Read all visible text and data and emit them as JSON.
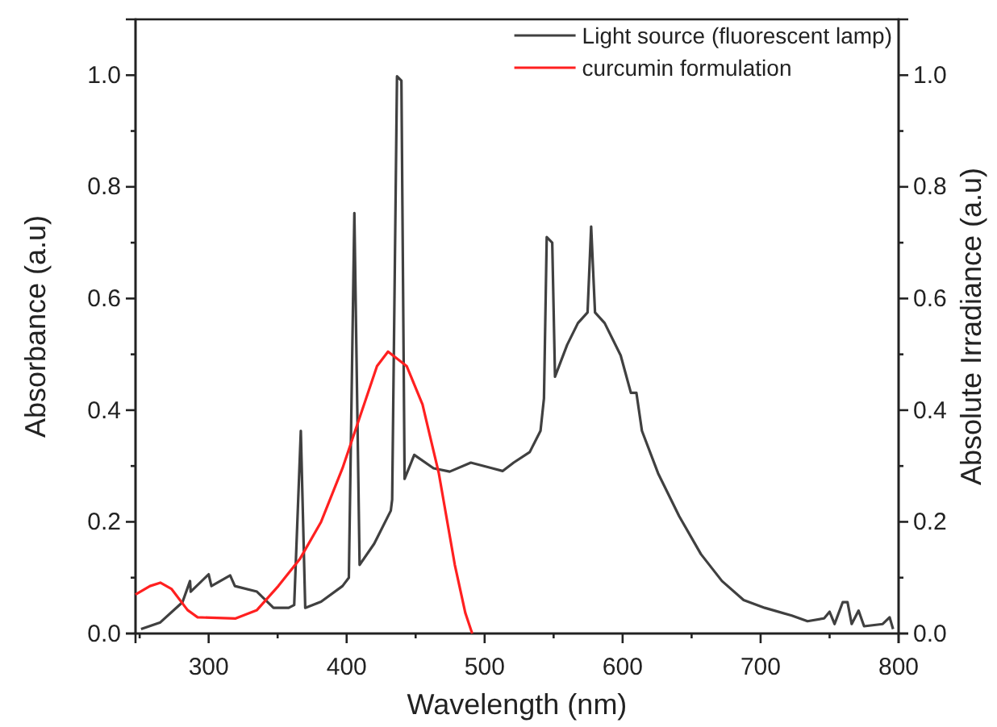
{
  "chart_data": {
    "type": "line",
    "xlabel": "Wavelength (nm)",
    "ylabel": "Absorbance (a.u)",
    "y2label": "Absolute Irradiance (a.u)",
    "xlim": [
      247,
      800
    ],
    "ylim": [
      0,
      1.1
    ],
    "y2lim": [
      0,
      1.1
    ],
    "xticks": [
      {
        "value": 250,
        "label": null
      },
      300,
      {
        "value": 350,
        "label": null
      },
      400,
      {
        "value": 450,
        "label": null
      },
      500,
      {
        "value": 550,
        "label": null
      },
      600,
      {
        "value": 650,
        "label": null
      },
      700,
      {
        "value": 750,
        "label": null
      },
      800
    ],
    "yticks": [
      {
        "value": 0,
        "label": "0.0"
      },
      {
        "value": 0.1,
        "label": null
      },
      0.2,
      {
        "value": 0.3,
        "label": null
      },
      0.4,
      {
        "value": 0.5,
        "label": null
      },
      0.6,
      {
        "value": 0.7,
        "label": null
      },
      0.8,
      {
        "value": 0.9,
        "label": null
      },
      {
        "value": 1,
        "label": "1.0"
      }
    ],
    "y2ticks": [
      {
        "value": 0,
        "label": "0.0"
      },
      {
        "value": 0.1,
        "label": null
      },
      0.2,
      {
        "value": 0.3,
        "label": null
      },
      0.4,
      {
        "value": 0.5,
        "label": null
      },
      0.6,
      {
        "value": 0.7,
        "label": null
      },
      0.8,
      {
        "value": 0.9,
        "label": null
      },
      {
        "value": 1,
        "label": "1.0"
      }
    ],
    "legend": "top right",
    "grid": false,
    "marker": "none",
    "line_style": "solid",
    "series": [
      {
        "name": "Light source (fluorescent lamp)",
        "color": "#404040",
        "x": [
          251,
          265,
          281,
          286.5,
          287,
          300,
          302,
          315.6,
          319,
          335,
          347,
          358,
          362,
          366.8,
          370,
          381.5,
          397,
          401.6,
          405.6,
          409.4,
          420,
          432,
          433,
          436.5,
          439.7,
          442,
          449,
          463,
          474.7,
          490,
          505.6,
          513,
          521,
          532.7,
          540.5,
          543,
          545,
          549,
          551,
          559.8,
          567.6,
          574.6,
          577.2,
          580,
          587,
          598.6,
          606,
          610,
          614,
          625.7,
          641,
          656.8,
          672,
          687.7,
          703,
          722.6,
          734,
          746,
          750,
          753.6,
          759.5,
          763,
          766,
          771,
          775,
          788.5,
          793.5,
          796
        ],
        "values": [
          0.008,
          0.02,
          0.056,
          0.094,
          0.075,
          0.106,
          0.085,
          0.104,
          0.085,
          0.075,
          0.046,
          0.046,
          0.051,
          0.363,
          0.046,
          0.057,
          0.085,
          0.1,
          0.753,
          0.123,
          0.161,
          0.22,
          0.24,
          0.998,
          0.99,
          0.277,
          0.32,
          0.296,
          0.29,
          0.306,
          0.296,
          0.291,
          0.306,
          0.325,
          0.363,
          0.421,
          0.71,
          0.7,
          0.46,
          0.517,
          0.556,
          0.575,
          0.729,
          0.575,
          0.556,
          0.498,
          0.431,
          0.431,
          0.363,
          0.287,
          0.21,
          0.142,
          0.094,
          0.06,
          0.046,
          0.032,
          0.022,
          0.027,
          0.039,
          0.017,
          0.056,
          0.056,
          0.017,
          0.041,
          0.013,
          0.017,
          0.029,
          0.008
        ]
      },
      {
        "name": "curcumin formulation",
        "color": "#ff2020",
        "x": [
          247,
          257.5,
          265,
          273,
          284.7,
          292,
          319.6,
          335,
          350.5,
          366,
          381.5,
          397,
          412.6,
          422,
          430,
          443.5,
          455,
          466.8,
          478.4,
          486,
          491
        ],
        "values": [
          0.07,
          0.085,
          0.091,
          0.08,
          0.042,
          0.029,
          0.027,
          0.042,
          0.085,
          0.133,
          0.2,
          0.296,
          0.41,
          0.479,
          0.505,
          0.479,
          0.41,
          0.287,
          0.123,
          0.037,
          0
        ]
      }
    ]
  }
}
